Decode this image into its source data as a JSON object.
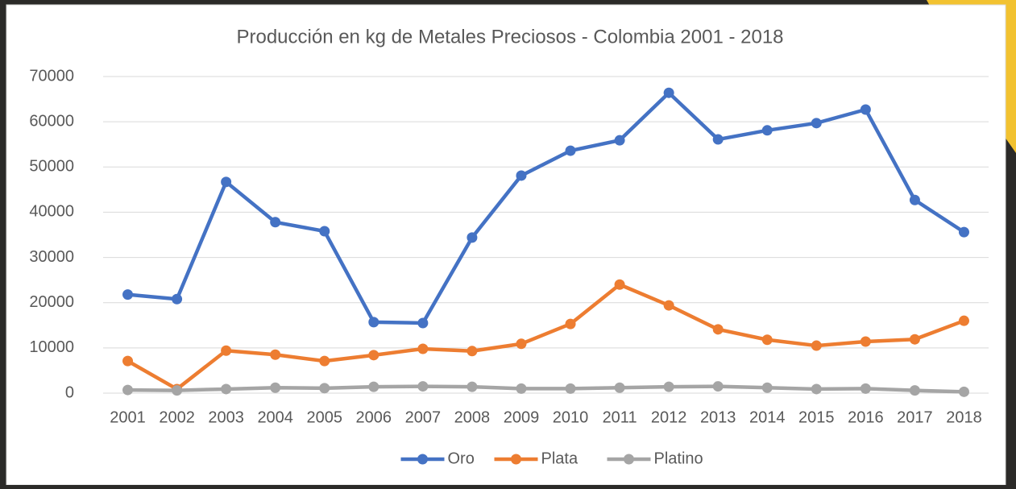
{
  "chart_data": {
    "type": "line",
    "title": "Producción en kg de Metales Preciosos -  Colombia 2001 - 2018",
    "categories": [
      "2001",
      "2002",
      "2003",
      "2004",
      "2005",
      "2006",
      "2007",
      "2008",
      "2009",
      "2010",
      "2011",
      "2012",
      "2013",
      "2014",
      "2015",
      "2016",
      "2017",
      "2018"
    ],
    "series": [
      {
        "name": "Oro",
        "color": "#4472c4",
        "values": [
          21800,
          20800,
          46700,
          37800,
          35800,
          15700,
          15500,
          34400,
          48100,
          53600,
          55900,
          66400,
          56100,
          58100,
          59700,
          62700,
          42700,
          35600
        ]
      },
      {
        "name": "Plata",
        "color": "#ed7d31",
        "values": [
          7100,
          900,
          9400,
          8500,
          7100,
          8400,
          9800,
          9300,
          10900,
          15300,
          24000,
          19400,
          14100,
          11800,
          10500,
          11400,
          11900,
          16000
        ]
      },
      {
        "name": "Platino",
        "color": "#a5a5a5",
        "values": [
          700,
          600,
          900,
          1200,
          1100,
          1400,
          1500,
          1400,
          1000,
          1000,
          1200,
          1400,
          1500,
          1200,
          900,
          1000,
          600,
          300
        ]
      }
    ],
    "ylim": [
      0,
      70000
    ],
    "yticks": [
      0,
      10000,
      20000,
      30000,
      40000,
      50000,
      60000,
      70000
    ],
    "grid": true,
    "legend": "bottom"
  }
}
